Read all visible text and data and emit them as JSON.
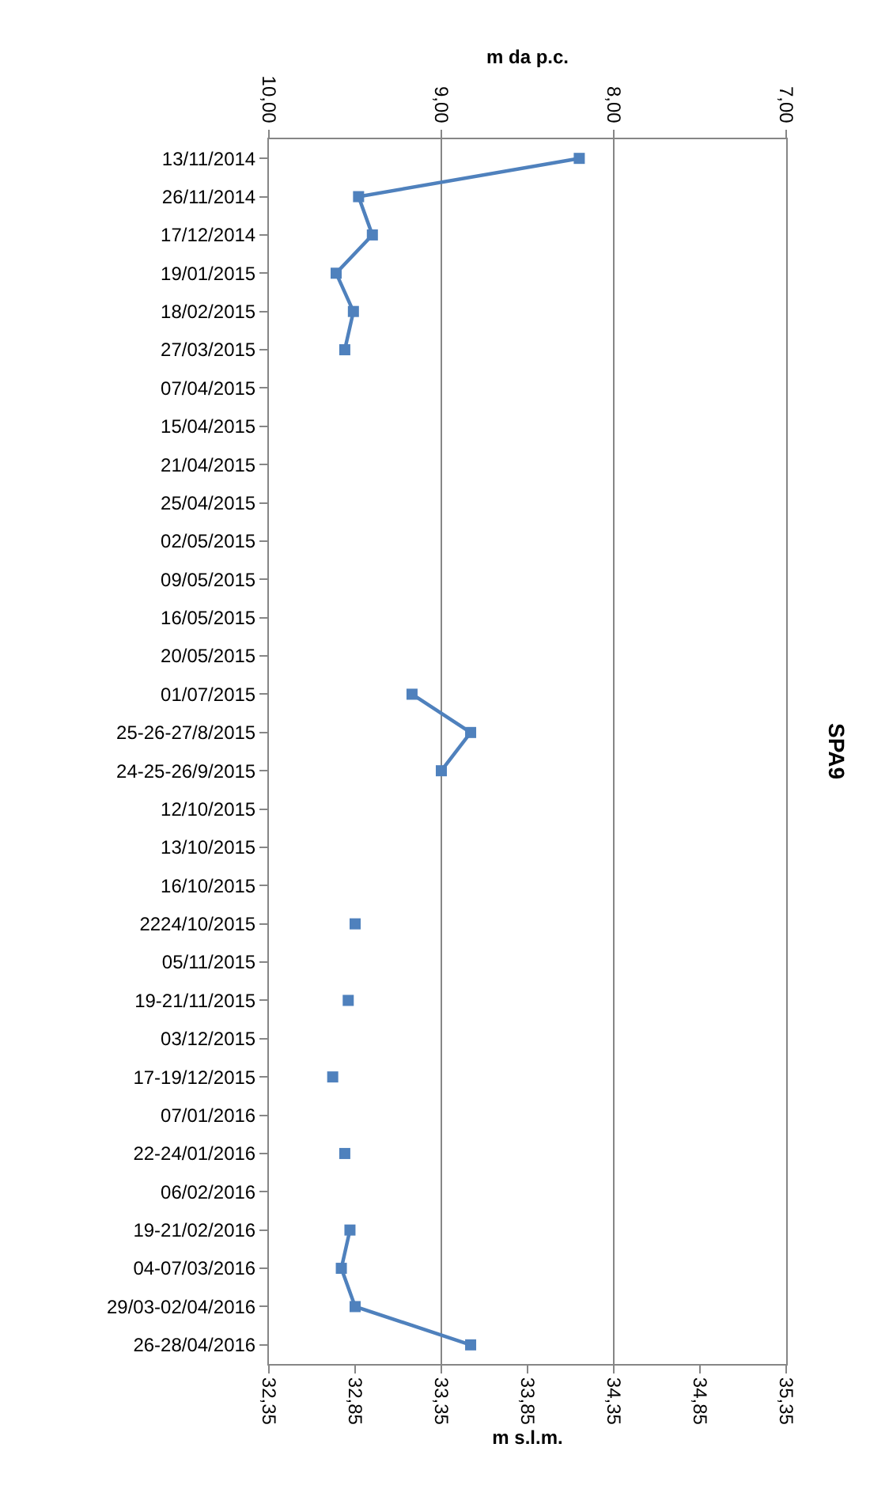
{
  "chart_data": {
    "type": "line",
    "title": "SPA9",
    "orientation": "horizontal",
    "xlabel": "m s.l.m.",
    "x2label": "m da p.c.",
    "categories": [
      "13/11/2014",
      "26/11/2014",
      "17/12/2014",
      "19/01/2015",
      "18/02/2015",
      "27/03/2015",
      "07/04/2015",
      "15/04/2015",
      "21/04/2015",
      "25/04/2015",
      "02/05/2015",
      "09/05/2015",
      "16/05/2015",
      "20/05/2015",
      "01/07/2015",
      "25-26-27/8/2015",
      "24-25-26/9/2015",
      "12/10/2015",
      "13/10/2015",
      "16/10/2015",
      "2224/10/2015",
      "05/11/2015",
      "19-21/11/2015",
      "03/12/2015",
      "17-19/12/2015",
      "07/01/2016",
      "22-24/01/2016",
      "06/02/2016",
      "19-21/02/2016",
      "04-07/03/2016",
      "29/03-02/04/2016",
      "26-28/04/2016"
    ],
    "series": [
      {
        "color": "#4f81bd",
        "values": [
          34.15,
          32.87,
          32.95,
          32.74,
          32.84,
          32.79,
          null,
          null,
          null,
          null,
          null,
          null,
          null,
          null,
          33.18,
          33.52,
          33.35,
          null,
          null,
          null,
          32.85,
          null,
          32.81,
          null,
          32.72,
          null,
          32.79,
          null,
          32.82,
          32.77,
          32.85,
          33.52
        ]
      }
    ],
    "xlim": [
      32.35,
      35.35
    ],
    "xticks": [
      {
        "value": 32.35,
        "label": "32,35"
      },
      {
        "value": 32.85,
        "label": "32,85"
      },
      {
        "value": 33.35,
        "label": "33,35"
      },
      {
        "value": 33.85,
        "label": "33,85"
      },
      {
        "value": 34.35,
        "label": "34,35"
      },
      {
        "value": 34.85,
        "label": "34,85"
      },
      {
        "value": 35.35,
        "label": "35,35"
      }
    ],
    "x2lim": [
      10,
      7
    ],
    "x2ticks": [
      {
        "value": 10,
        "label": "10,00"
      },
      {
        "value": 9,
        "label": "9,00"
      },
      {
        "value": 8,
        "label": "8,00"
      },
      {
        "value": 7,
        "label": "7,00"
      }
    ],
    "grid": "x2",
    "marker": "square",
    "line_style": "solid"
  }
}
